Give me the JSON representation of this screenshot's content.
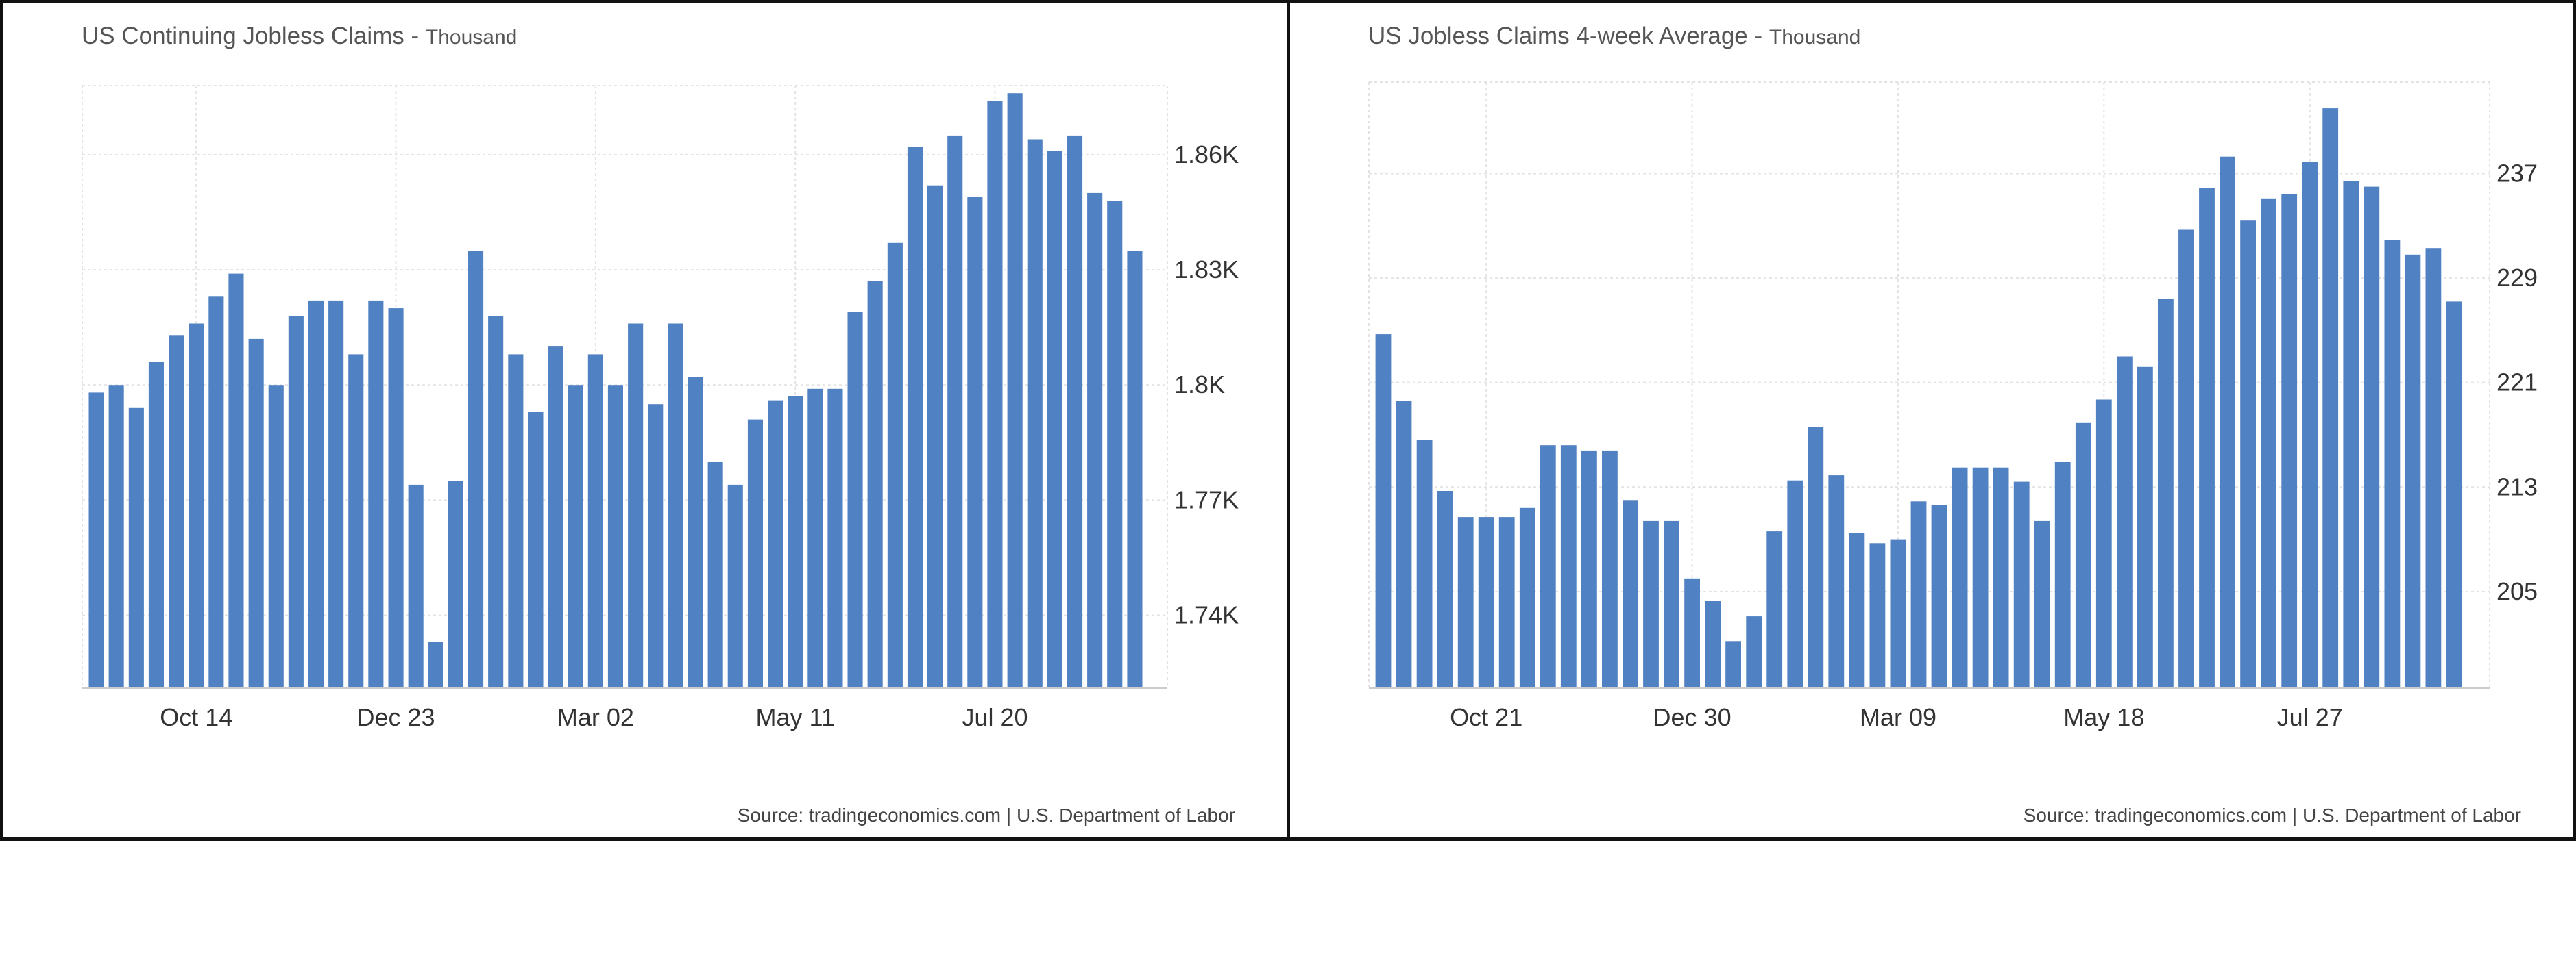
{
  "charts": [
    {
      "title": "US Continuing Jobless Claims",
      "unit": "Thousand",
      "source": "Source: tradingeconomics.com | U.S. Department of Labor"
    },
    {
      "title": "US Jobless Claims 4-week Average",
      "unit": "Thousand",
      "source": "Source: tradingeconomics.com | U.S. Department of Labor"
    }
  ],
  "chart_data": [
    {
      "type": "bar",
      "title": "US Continuing Jobless Claims",
      "subtitle": "Thousand",
      "xlabel": "",
      "ylabel": "",
      "ylim": [
        1721,
        1878
      ],
      "grid": true,
      "color": "#4f81c3",
      "x_tick_labels": [
        "Oct 14",
        "Dec 23",
        "Mar 02",
        "May 11",
        "Jul 20"
      ],
      "x_tick_index": [
        5,
        15,
        25,
        35,
        45
      ],
      "y_ticks": [
        1740,
        1770,
        1800,
        1830,
        1860
      ],
      "y_tick_labels": [
        "1.74K",
        "1.77K",
        "1.8K",
        "1.83K",
        "1.86K"
      ],
      "values": [
        1798,
        1800,
        1794,
        1806,
        1813,
        1816,
        1823,
        1829,
        1812,
        1800,
        1818,
        1822,
        1822,
        1808,
        1822,
        1820,
        1774,
        1733,
        1775,
        1835,
        1818,
        1808,
        1793,
        1810,
        1800,
        1808,
        1800,
        1816,
        1795,
        1816,
        1802,
        1780,
        1774,
        1791,
        1796,
        1797,
        1799,
        1799,
        1819,
        1827,
        1837,
        1862,
        1852,
        1865,
        1849,
        1874,
        1876,
        1864,
        1861,
        1865,
        1850,
        1848,
        1835
      ]
    },
    {
      "type": "bar",
      "title": "US Jobless Claims 4-week Average",
      "subtitle": "Thousand",
      "xlabel": "",
      "ylabel": "",
      "ylim": [
        197.6,
        244.0
      ],
      "grid": true,
      "color": "#4f81c3",
      "x_tick_labels": [
        "Oct 21",
        "Dec 30",
        "Mar 09",
        "May 18",
        "Jul 27"
      ],
      "x_tick_index": [
        5,
        15,
        25,
        35,
        45
      ],
      "y_ticks": [
        205,
        213,
        221,
        229,
        237
      ],
      "y_tick_labels": [
        "205",
        "213",
        "221",
        "229",
        "237"
      ],
      "values": [
        224.7,
        219.6,
        216.6,
        212.7,
        210.7,
        210.7,
        210.7,
        211.4,
        216.2,
        216.2,
        215.8,
        215.8,
        212.0,
        210.4,
        210.4,
        206.0,
        204.3,
        201.2,
        203.1,
        209.6,
        213.5,
        217.6,
        213.9,
        209.5,
        208.7,
        209.0,
        211.9,
        211.6,
        214.5,
        214.5,
        214.5,
        213.4,
        210.4,
        214.9,
        217.9,
        219.7,
        223.0,
        222.2,
        227.4,
        232.7,
        235.9,
        238.3,
        233.4,
        235.1,
        235.4,
        237.9,
        242.0,
        236.4,
        236.0,
        231.9,
        230.8,
        231.3,
        227.2
      ]
    }
  ]
}
